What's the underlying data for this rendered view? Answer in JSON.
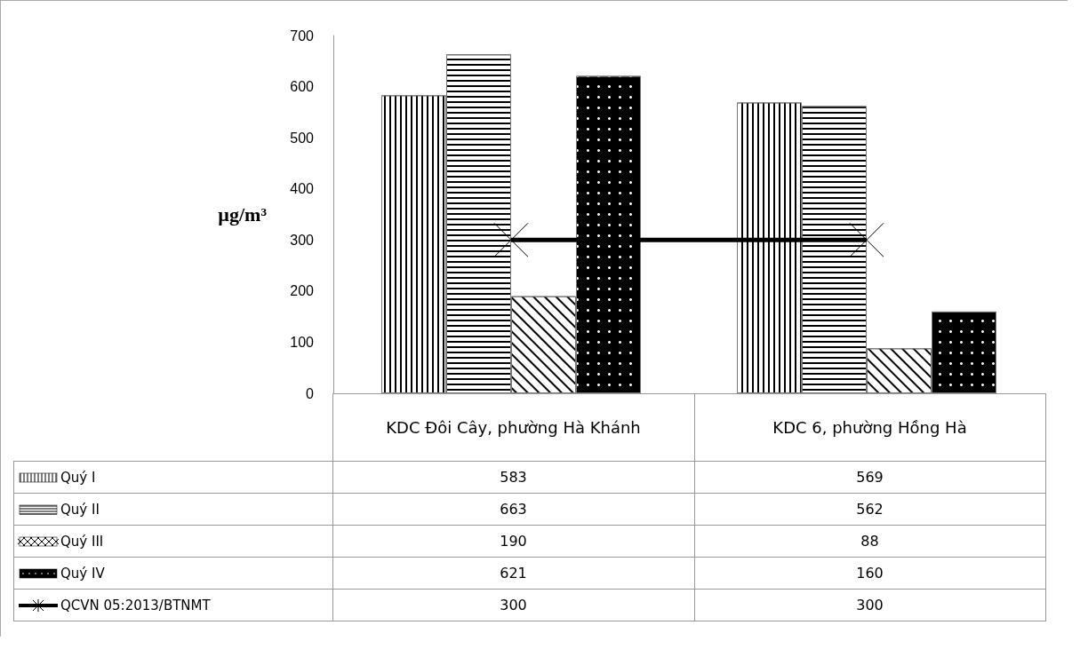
{
  "chart_data": {
    "type": "bar",
    "ylabel": "µg/m³",
    "categories": [
      "KDC Đôi Cây, phường Hà Khánh",
      "KDC 6, phường Hồng Hà"
    ],
    "series": [
      {
        "name": "Quý I",
        "color": "#ffffff",
        "values": [
          583,
          569
        ]
      },
      {
        "name": "Quý II",
        "color": "#ffffff",
        "values": [
          663,
          562
        ]
      },
      {
        "name": "Quý III",
        "color": "#ffffff",
        "values": [
          190,
          88
        ]
      },
      {
        "name": "Quý IV",
        "color": "#000000",
        "values": [
          621,
          160
        ]
      },
      {
        "name": "QCVN 05:2013/BTNMT",
        "type": "line",
        "color": "#000000",
        "marker": "cross",
        "values": [
          300,
          300
        ]
      }
    ],
    "ylim": [
      0,
      700
    ],
    "yticks": [
      0,
      100,
      200,
      300,
      400,
      500,
      600,
      700
    ],
    "grid": false,
    "legend": "bottom",
    "data_labels": true
  }
}
